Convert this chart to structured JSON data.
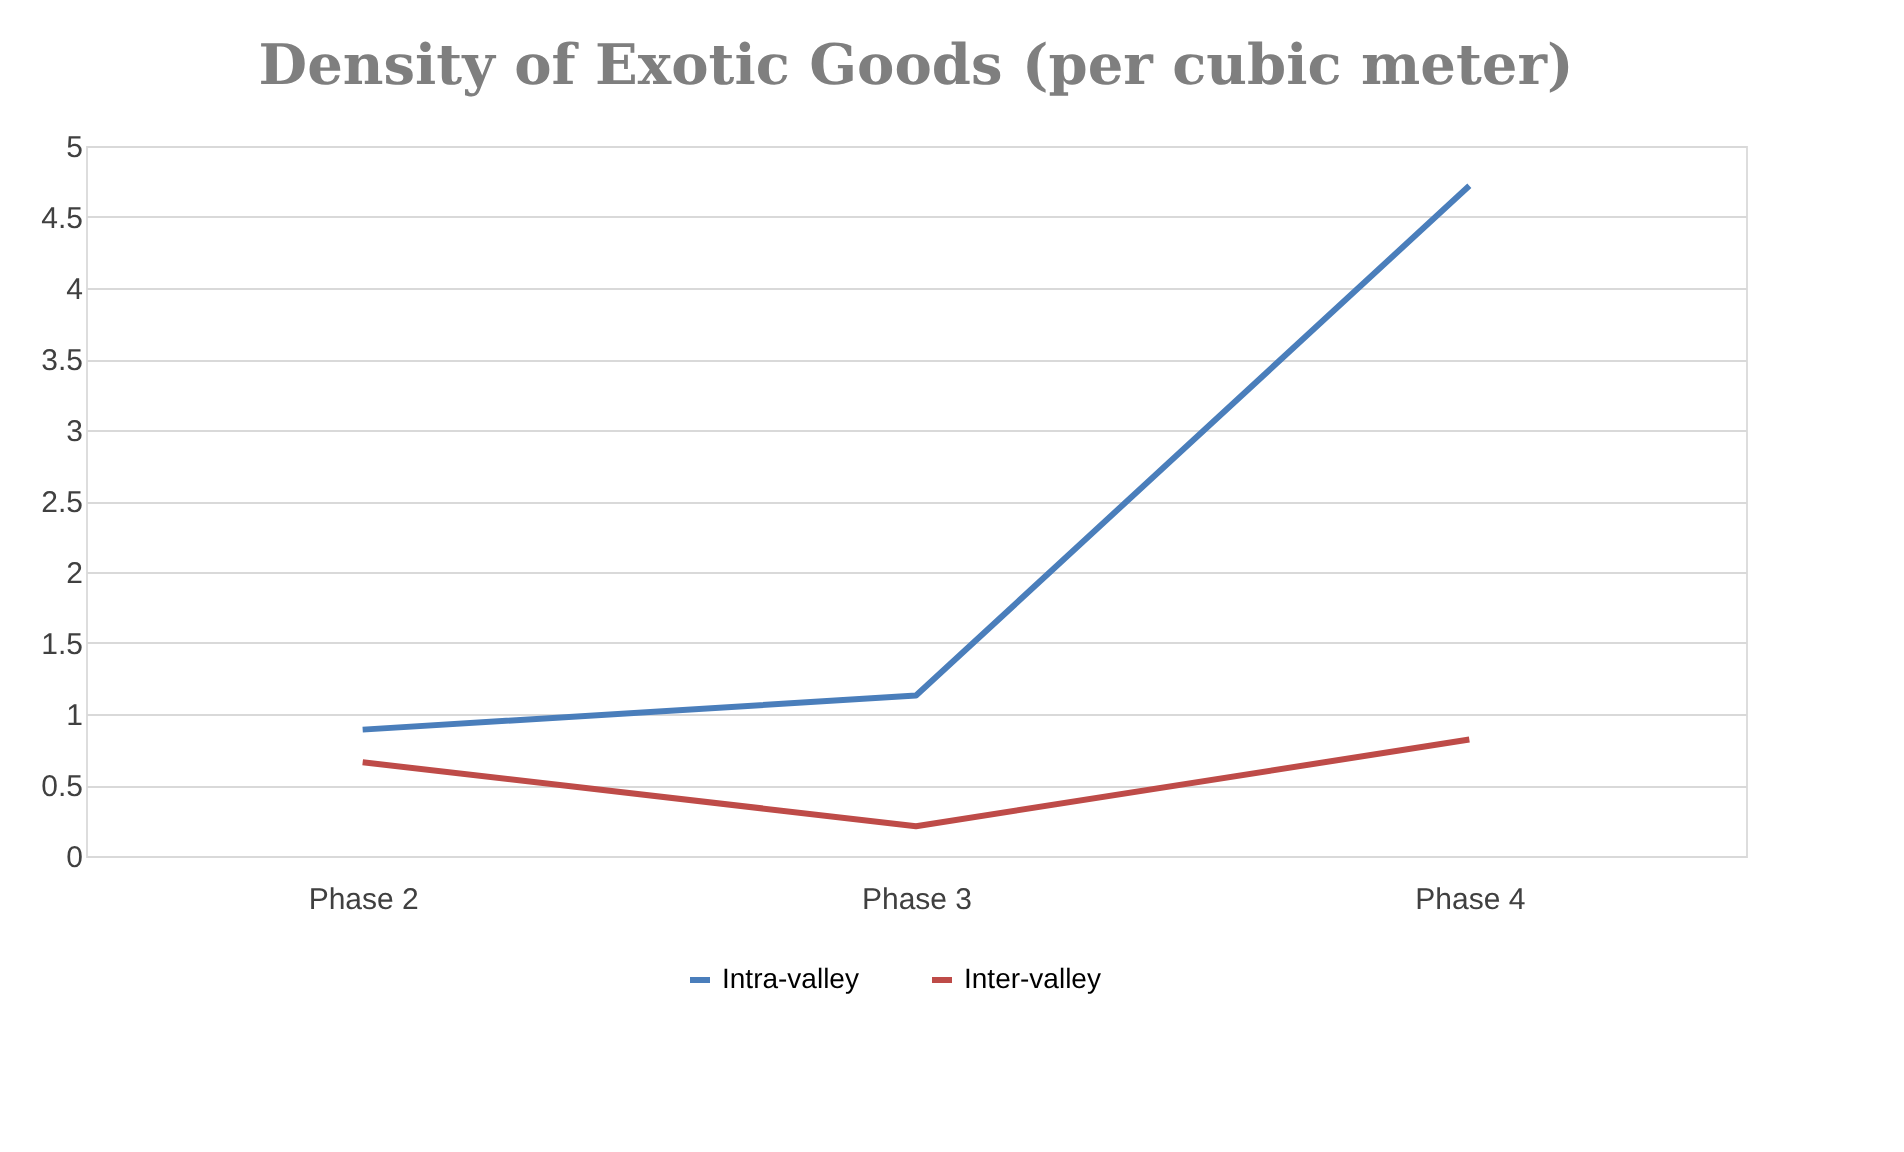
{
  "chart_data": {
    "type": "line",
    "title": "Density of Exotic Goods (per cubic meter)",
    "categories": [
      "Phase 2",
      "Phase 3",
      "Phase 4"
    ],
    "series": [
      {
        "name": "Intra-valley",
        "color": "#4a7ebb",
        "values": [
          0.89,
          1.13,
          4.72
        ]
      },
      {
        "name": "Inter-valley",
        "color": "#be4b48",
        "values": [
          0.66,
          0.21,
          0.82
        ]
      }
    ],
    "ylim": [
      0,
      5
    ],
    "yticks": [
      0,
      0.5,
      1,
      1.5,
      2,
      2.5,
      3,
      3.5,
      4,
      4.5,
      5
    ],
    "grid": "y",
    "legend": "bottom",
    "marker": "none",
    "line_style": "solid"
  }
}
